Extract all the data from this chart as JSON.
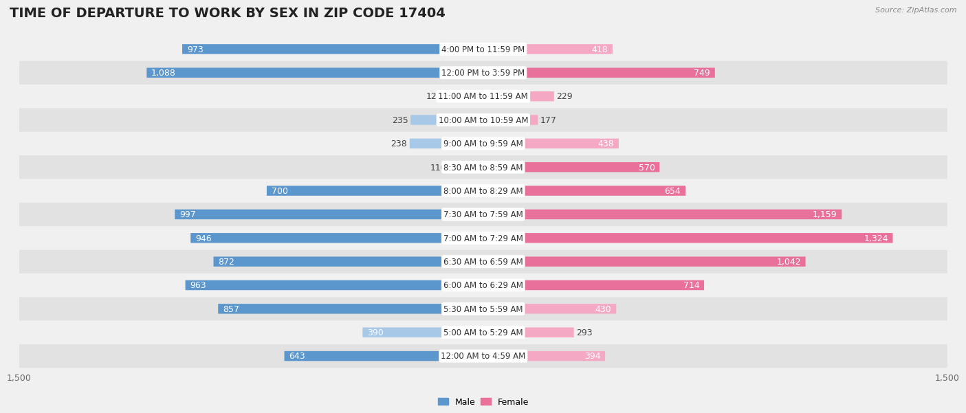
{
  "title": "TIME OF DEPARTURE TO WORK BY SEX IN ZIP CODE 17404",
  "source": "Source: ZipAtlas.com",
  "categories": [
    "12:00 AM to 4:59 AM",
    "5:00 AM to 5:29 AM",
    "5:30 AM to 5:59 AM",
    "6:00 AM to 6:29 AM",
    "6:30 AM to 6:59 AM",
    "7:00 AM to 7:29 AM",
    "7:30 AM to 7:59 AM",
    "8:00 AM to 8:29 AM",
    "8:30 AM to 8:59 AM",
    "9:00 AM to 9:59 AM",
    "10:00 AM to 10:59 AM",
    "11:00 AM to 11:59 AM",
    "12:00 PM to 3:59 PM",
    "4:00 PM to 11:59 PM"
  ],
  "male": [
    643,
    390,
    857,
    963,
    872,
    946,
    997,
    700,
    110,
    238,
    235,
    124,
    1088,
    973
  ],
  "female": [
    394,
    293,
    430,
    714,
    1042,
    1324,
    1159,
    654,
    570,
    438,
    177,
    229,
    749,
    418
  ],
  "male_color_dark": "#5b96cc",
  "male_color_light": "#a8c8e8",
  "female_color_dark": "#e8709a",
  "female_color_light": "#f4a8c4",
  "xlim": 1500,
  "bar_height": 0.42,
  "bg_color": "#f0f0f0",
  "row_color_dark": "#e2e2e2",
  "row_color_light": "#f0f0f0",
  "title_fontsize": 14,
  "label_fontsize": 9,
  "axis_fontsize": 9,
  "category_fontsize": 8.5,
  "inside_label_threshold": 300
}
